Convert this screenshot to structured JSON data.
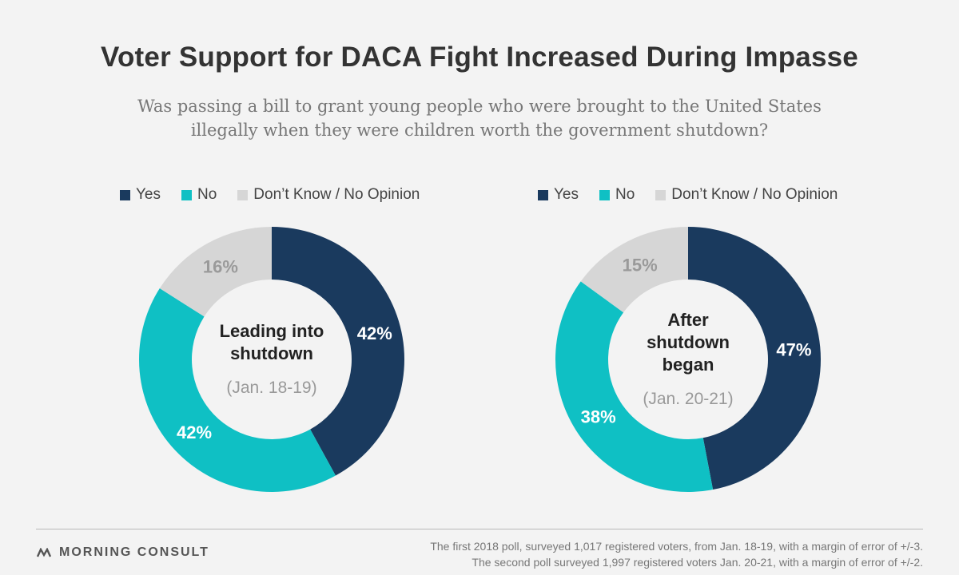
{
  "title": "Voter Support for DACA Fight Increased During Impasse",
  "subtitle_line1": "Was passing a bill to grant young people who were brought to the United States",
  "subtitle_line2": "illegally when they were children worth the government shutdown?",
  "colors": {
    "yes": "#1a3a5e",
    "no": "#0fc0c4",
    "dont_know": "#d6d6d6"
  },
  "chart_data": [
    {
      "type": "pie",
      "legend": [
        "Yes",
        "No",
        "Don’t Know / No Opinion"
      ],
      "center_bold": [
        "Leading into",
        "shutdown"
      ],
      "center_light": "(Jan. 18-19)",
      "slices": [
        {
          "label": "Yes",
          "value": 42,
          "display": "42%",
          "color": "#1a3a5e"
        },
        {
          "label": "No",
          "value": 42,
          "display": "42%",
          "color": "#0fc0c4"
        },
        {
          "label": "Don’t Know / No Opinion",
          "value": 16,
          "display": "16%",
          "color": "#d6d6d6"
        }
      ]
    },
    {
      "type": "pie",
      "legend": [
        "Yes",
        "No",
        "Don’t Know / No Opinion"
      ],
      "center_bold": [
        "After",
        "shutdown",
        "began"
      ],
      "center_light": "(Jan. 20-21)",
      "slices": [
        {
          "label": "Yes",
          "value": 47,
          "display": "47%",
          "color": "#1a3a5e"
        },
        {
          "label": "No",
          "value": 38,
          "display": "38%",
          "color": "#0fc0c4"
        },
        {
          "label": "Don’t Know / No Opinion",
          "value": 15,
          "display": "15%",
          "color": "#d6d6d6"
        }
      ]
    }
  ],
  "footer": {
    "brand": "MORNING CONSULT",
    "note_line1": "The first 2018 poll, surveyed 1,017 registered voters, from Jan. 18-19, with a margin of error of +/-3.",
    "note_line2": "The second poll surveyed 1,997 registered voters Jan. 20-21, with a margin of error of +/-2."
  }
}
